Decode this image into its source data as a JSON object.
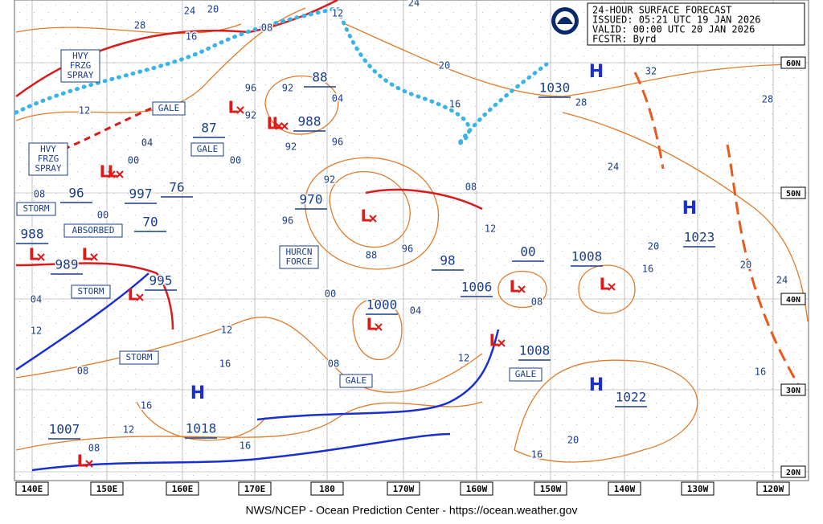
{
  "header": {
    "lines": [
      "24-HOUR SURFACE FORECAST",
      "ISSUED: 05:21 UTC 19 JAN 2026",
      "VALID:  00:00 UTC 20 JAN 2026",
      "FCSTR:  Byrd"
    ]
  },
  "footer": "NWS/NCEP - Ocean Prediction Center - https://ocean.weather.gov",
  "lon_labels": [
    "140E",
    "150E",
    "160E",
    "170E",
    "180",
    "170W",
    "160W",
    "150W",
    "140W",
    "130W",
    "120W"
  ],
  "lat_labels": [
    "60N",
    "50N",
    "40N",
    "30N",
    "20N"
  ],
  "high_symbols": [
    "H",
    "H",
    "H",
    "H"
  ],
  "low_symbols": [
    "L",
    "L",
    "L",
    "L",
    "L",
    "L",
    "L",
    "L",
    "L",
    "L",
    "L",
    "L",
    "L",
    "L"
  ],
  "pressure_labels": [
    "1030",
    "1023",
    "1022",
    "1018",
    "1007",
    "1008",
    "1006",
    "1008",
    "1000",
    "970",
    "988",
    "88",
    "87",
    "997",
    "96",
    "76",
    "70",
    "995",
    "989",
    "988",
    "98",
    "00"
  ],
  "warning_boxes": [
    {
      "lines": [
        "HVY",
        "FRZG",
        "SPRAY"
      ]
    },
    {
      "lines": [
        "HVY",
        "FRZG",
        "SPRAY"
      ]
    },
    {
      "lines": [
        "GALE"
      ]
    },
    {
      "lines": [
        "GALE"
      ]
    },
    {
      "lines": [
        "GALE"
      ]
    },
    {
      "lines": [
        "GALE"
      ]
    },
    {
      "lines": [
        "STORM"
      ]
    },
    {
      "lines": [
        "STORM"
      ]
    },
    {
      "lines": [
        "STORM"
      ]
    },
    {
      "lines": [
        "ABSORBED"
      ]
    },
    {
      "lines": [
        "HURCN",
        "FORCE"
      ]
    }
  ],
  "isobar_labels": [
    "24",
    "20",
    "28",
    "16",
    "12",
    "08",
    "00",
    "04",
    "00",
    "00",
    "04",
    "92",
    "92",
    "96",
    "92",
    "96",
    "92",
    "96",
    "88",
    "96",
    "00",
    "04",
    "08",
    "12",
    "16",
    "08",
    "16",
    "12",
    "16",
    "08",
    "12",
    "08",
    "12",
    "08",
    "16",
    "20",
    "16",
    "20",
    "20",
    "24",
    "16",
    "24",
    "28",
    "28",
    "32",
    "24",
    "20",
    "16",
    "12",
    "08",
    "04",
    "12"
  ]
}
